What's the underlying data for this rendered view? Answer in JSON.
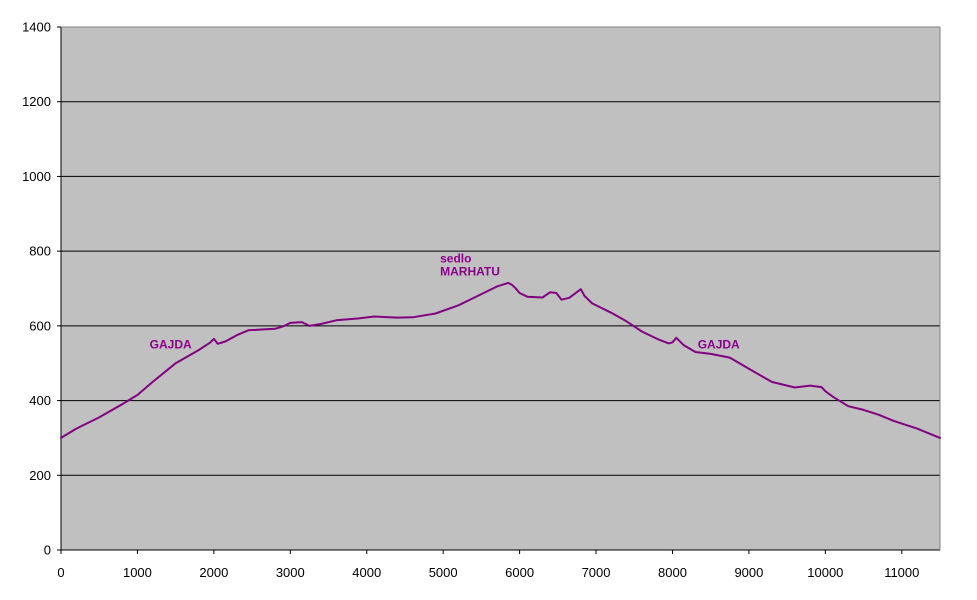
{
  "chart_data": {
    "type": "line",
    "title": "",
    "xlabel": "",
    "ylabel": "",
    "xlim": [
      0,
      11500
    ],
    "ylim": [
      0,
      1400
    ],
    "x_ticks": [
      0,
      1000,
      2000,
      3000,
      4000,
      5000,
      6000,
      7000,
      8000,
      9000,
      10000,
      11000
    ],
    "y_ticks": [
      0,
      200,
      400,
      600,
      800,
      1000,
      1200,
      1400
    ],
    "x_tick_labels": [
      "0",
      "1000",
      "2000",
      "3000",
      "4000",
      "5000",
      "6000",
      "7000",
      "8000",
      "9000",
      "10000",
      "11000"
    ],
    "y_tick_labels": [
      "0",
      "200",
      "400",
      "600",
      "800",
      "1000",
      "1200",
      "1400"
    ],
    "grid": "horizontal",
    "legend": "none",
    "colors": {
      "plot_background": "#C0C0C0",
      "line": "#800080",
      "annotation": "#8B008B",
      "grid": "#000000"
    },
    "series": [
      {
        "x": [
          0,
          200,
          500,
          800,
          1000,
          1200,
          1500,
          1800,
          1950,
          2000,
          2050,
          2150,
          2300,
          2450,
          2600,
          2800,
          2900,
          3000,
          3150,
          3250,
          3400,
          3600,
          3900,
          4100,
          4400,
          4600,
          4900,
          5200,
          5500,
          5700,
          5850,
          5900,
          5950,
          6000,
          6100,
          6300,
          6400,
          6480,
          6550,
          6650,
          6800,
          6850,
          6950,
          7200,
          7400,
          7600,
          7800,
          7950,
          8000,
          8050,
          8150,
          8300,
          8500,
          8750,
          9000,
          9300,
          9600,
          9800,
          9950,
          10000,
          10100,
          10300,
          10500,
          10700,
          10900,
          11200,
          11500
        ],
        "y": [
          300,
          325,
          355,
          390,
          415,
          450,
          500,
          535,
          555,
          565,
          552,
          558,
          575,
          588,
          590,
          592,
          598,
          608,
          610,
          600,
          605,
          615,
          620,
          625,
          622,
          623,
          633,
          655,
          685,
          705,
          715,
          710,
          700,
          688,
          678,
          676,
          690,
          688,
          670,
          675,
          698,
          680,
          660,
          635,
          612,
          585,
          565,
          553,
          556,
          568,
          548,
          530,
          525,
          515,
          485,
          450,
          435,
          440,
          436,
          425,
          410,
          385,
          375,
          362,
          345,
          325,
          300
        ]
      }
    ],
    "annotations": [
      {
        "text": "GAJDA",
        "x": 1160,
        "y": 540
      },
      {
        "text": "sedlo",
        "x": 4960,
        "y": 770
      },
      {
        "text": "MARHATU",
        "x": 4960,
        "y": 735
      },
      {
        "text": "GAJDA",
        "x": 8330,
        "y": 540
      }
    ]
  }
}
